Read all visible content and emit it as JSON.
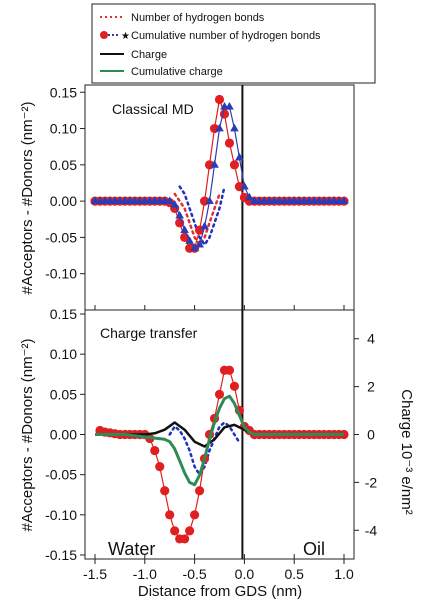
{
  "legend": {
    "entries": [
      {
        "label": "Number of hydrogen bonds",
        "style": "dotted",
        "color": "#e03030"
      },
      {
        "label": "Cumulative number of hydrogen bonds",
        "style": "markers",
        "color": "#e02020"
      },
      {
        "label": "Charge",
        "style": "line",
        "color": "#111111"
      },
      {
        "label": "Cumulative charge",
        "style": "line",
        "color": "#2e8b57"
      }
    ]
  },
  "chart_data": [
    {
      "type": "line",
      "panel_label": "Classical MD",
      "ylabel": "#Acceptors - #Donors (nm⁻²)",
      "ylim": [
        -0.15,
        0.16
      ],
      "yticks": [
        "0.15",
        "0.10",
        "0.05",
        "0.00",
        "-0.05",
        "-0.10"
      ],
      "ytick_values": [
        0.15,
        0.1,
        0.05,
        0.0,
        -0.05,
        -0.1
      ],
      "xlim": [
        -1.5,
        1.0
      ],
      "vline_x": -0.02,
      "series": [
        {
          "role": "dotted-red",
          "color": "#e03030",
          "x": [
            -0.7,
            -0.65,
            -0.6,
            -0.55,
            -0.5,
            -0.45,
            -0.4,
            -0.35,
            -0.3,
            -0.25
          ],
          "y": [
            0.01,
            0.0,
            -0.01,
            -0.03,
            -0.05,
            -0.06,
            -0.05,
            -0.03,
            -0.01,
            0.01
          ]
        },
        {
          "role": "dotted-blue",
          "color": "#2030c0",
          "x": [
            -0.65,
            -0.6,
            -0.55,
            -0.5,
            -0.45,
            -0.4,
            -0.35,
            -0.3,
            -0.25,
            -0.2
          ],
          "y": [
            0.02,
            0.01,
            -0.01,
            -0.03,
            -0.05,
            -0.06,
            -0.05,
            -0.03,
            -0.01,
            0.02
          ]
        },
        {
          "role": "cumulative-red",
          "color": "#e02020",
          "marker": "circle",
          "x": [
            -1.5,
            -1.45,
            -1.4,
            -1.35,
            -1.3,
            -1.25,
            -1.2,
            -1.15,
            -1.1,
            -1.05,
            -1.0,
            -0.95,
            -0.9,
            -0.85,
            -0.8,
            -0.75,
            -0.7,
            -0.65,
            -0.6,
            -0.55,
            -0.5,
            -0.45,
            -0.4,
            -0.35,
            -0.3,
            -0.25,
            -0.2,
            -0.15,
            -0.1,
            -0.05,
            0.0,
            0.05,
            0.1,
            0.15,
            0.2,
            0.25,
            0.3,
            0.35,
            0.4,
            0.45,
            0.5,
            0.55,
            0.6,
            0.65,
            0.7,
            0.75,
            0.8,
            0.85,
            0.9,
            0.95,
            1.0
          ],
          "y": [
            0,
            0,
            0,
            0,
            0,
            0,
            0,
            0,
            0,
            0,
            0,
            0,
            0,
            0,
            0,
            -0.002,
            -0.01,
            -0.03,
            -0.05,
            -0.065,
            -0.065,
            -0.04,
            0.0,
            0.05,
            0.1,
            0.14,
            0.12,
            0.08,
            0.05,
            0.02,
            0.005,
            0,
            0,
            0,
            0,
            0,
            0,
            0,
            0,
            0,
            0,
            0,
            0,
            0,
            0,
            0,
            0,
            0,
            0,
            0,
            0
          ]
        },
        {
          "role": "cumulative-blue",
          "color": "#2a3db8",
          "marker": "triangle",
          "x": [
            -1.5,
            -1.45,
            -1.4,
            -1.35,
            -1.3,
            -1.25,
            -1.2,
            -1.15,
            -1.1,
            -1.05,
            -1.0,
            -0.95,
            -0.9,
            -0.85,
            -0.8,
            -0.75,
            -0.7,
            -0.65,
            -0.6,
            -0.55,
            -0.5,
            -0.45,
            -0.4,
            -0.35,
            -0.3,
            -0.25,
            -0.2,
            -0.15,
            -0.1,
            -0.05,
            0.0,
            0.05,
            0.1,
            0.15,
            0.2,
            0.25,
            0.3,
            0.35,
            0.4,
            0.45,
            0.5,
            0.55,
            0.6,
            0.65,
            0.7,
            0.75,
            0.8,
            0.85,
            0.9,
            0.95,
            1.0
          ],
          "y": [
            0,
            0,
            0,
            0,
            0,
            0,
            0,
            0,
            0,
            0,
            0,
            0,
            0,
            0,
            0,
            0,
            -0.005,
            -0.02,
            -0.04,
            -0.055,
            -0.065,
            -0.06,
            -0.035,
            0.0,
            0.05,
            0.1,
            0.13,
            0.13,
            0.1,
            0.06,
            0.02,
            0.005,
            0,
            0,
            0,
            0,
            0,
            0,
            0,
            0,
            0,
            0,
            0,
            0,
            0,
            0,
            0,
            0,
            0,
            0,
            0
          ]
        }
      ]
    },
    {
      "type": "line",
      "panel_label": "Charge transfer",
      "ylabel": "#Acceptors - #Donors (nm⁻²)",
      "ylim": [
        -0.155,
        0.155
      ],
      "yticks": [
        "0.15",
        "0.10",
        "0.05",
        "0.00",
        "-0.05",
        "-0.10",
        "-0.15"
      ],
      "ytick_values": [
        0.15,
        0.1,
        0.05,
        0.0,
        -0.05,
        -0.1,
        -0.15
      ],
      "y2label": "Charge 10⁻³ e/nm²",
      "y2lim": [
        -5.2,
        5.2
      ],
      "y2ticks": [
        "4",
        "2",
        "0",
        "-2",
        "-4"
      ],
      "y2tick_values": [
        4,
        2,
        0,
        -2,
        -4
      ],
      "xlim": [
        -1.5,
        1.0
      ],
      "xlabel": "Distance from GDS (nm)",
      "xticks": [
        "-1.5",
        "-1.0",
        "-0.5",
        "0.0",
        "0.5",
        "1.0"
      ],
      "xtick_values": [
        -1.5,
        -1.0,
        -0.5,
        0.0,
        0.5,
        1.0
      ],
      "vline_x": -0.02,
      "region_left": "Water",
      "region_right": "Oil",
      "series": [
        {
          "role": "dotted-blue",
          "color": "#2030c0",
          "x": [
            -0.75,
            -0.7,
            -0.65,
            -0.6,
            -0.55,
            -0.5,
            -0.45,
            -0.4,
            -0.35,
            -0.3,
            -0.25,
            -0.2,
            -0.15,
            -0.1,
            -0.05
          ],
          "y": [
            0.0,
            0.01,
            0.005,
            -0.005,
            -0.02,
            -0.04,
            -0.05,
            -0.04,
            -0.02,
            -0.005,
            0.01,
            0.015,
            0.01,
            0.0,
            -0.01
          ]
        },
        {
          "role": "cumulative-red",
          "color": "#e02020",
          "marker": "circle",
          "x": [
            -1.45,
            -1.4,
            -1.35,
            -1.3,
            -1.25,
            -1.2,
            -1.15,
            -1.1,
            -1.05,
            -1.0,
            -0.95,
            -0.9,
            -0.85,
            -0.8,
            -0.75,
            -0.7,
            -0.65,
            -0.6,
            -0.55,
            -0.5,
            -0.45,
            -0.4,
            -0.35,
            -0.3,
            -0.25,
            -0.2,
            -0.15,
            -0.1,
            -0.05,
            0.0,
            0.05,
            0.1,
            0.15,
            0.2,
            0.25,
            0.3,
            0.35,
            0.4,
            0.45,
            0.5,
            0.55,
            0.6,
            0.65,
            0.7,
            0.75,
            0.8,
            0.85,
            0.9,
            0.95,
            1.0
          ],
          "y": [
            0.005,
            0.003,
            0.002,
            0.001,
            0,
            0,
            0,
            0,
            0,
            0,
            -0.005,
            -0.02,
            -0.04,
            -0.07,
            -0.1,
            -0.12,
            -0.13,
            -0.13,
            -0.12,
            -0.1,
            -0.07,
            -0.03,
            0.0,
            0.02,
            0.05,
            0.08,
            0.08,
            0.06,
            0.03,
            0.01,
            0.005,
            0,
            0,
            0,
            0,
            0,
            0,
            0,
            0,
            0,
            0,
            0,
            0,
            0,
            0,
            0,
            0,
            0,
            0,
            0
          ]
        },
        {
          "role": "charge-black",
          "color": "#111111",
          "axis": "y2",
          "x": [
            -1.5,
            -1.4,
            -1.3,
            -1.2,
            -1.1,
            -1.0,
            -0.9,
            -0.8,
            -0.7,
            -0.6,
            -0.5,
            -0.4,
            -0.3,
            -0.2,
            -0.1,
            0.0,
            0.1,
            0.2,
            0.4,
            0.6,
            0.8,
            1.0
          ],
          "y": [
            0,
            0,
            0,
            0,
            0,
            0,
            0.05,
            0.2,
            0.5,
            0.2,
            -0.3,
            -0.5,
            -0.2,
            0.3,
            0.4,
            0.2,
            0.0,
            0,
            0,
            0,
            0,
            0
          ]
        },
        {
          "role": "cumulative-charge-green",
          "color": "#2e8b57",
          "axis": "y2",
          "x": [
            -1.5,
            -1.4,
            -1.3,
            -1.2,
            -1.1,
            -1.0,
            -0.9,
            -0.8,
            -0.75,
            -0.7,
            -0.65,
            -0.6,
            -0.55,
            -0.5,
            -0.45,
            -0.4,
            -0.35,
            -0.3,
            -0.25,
            -0.2,
            -0.15,
            -0.1,
            -0.05,
            0.0,
            0.05,
            0.1,
            0.2,
            0.4,
            0.6,
            0.8,
            1.0
          ],
          "y": [
            0,
            0,
            0,
            0,
            -0.05,
            -0.1,
            -0.15,
            -0.2,
            -0.3,
            -0.6,
            -1.1,
            -1.6,
            -2.0,
            -2.1,
            -1.7,
            -1.0,
            -0.2,
            0.5,
            1.1,
            1.5,
            1.6,
            1.3,
            0.8,
            0.3,
            0.1,
            0,
            0,
            0,
            0,
            0,
            0
          ]
        }
      ]
    }
  ]
}
